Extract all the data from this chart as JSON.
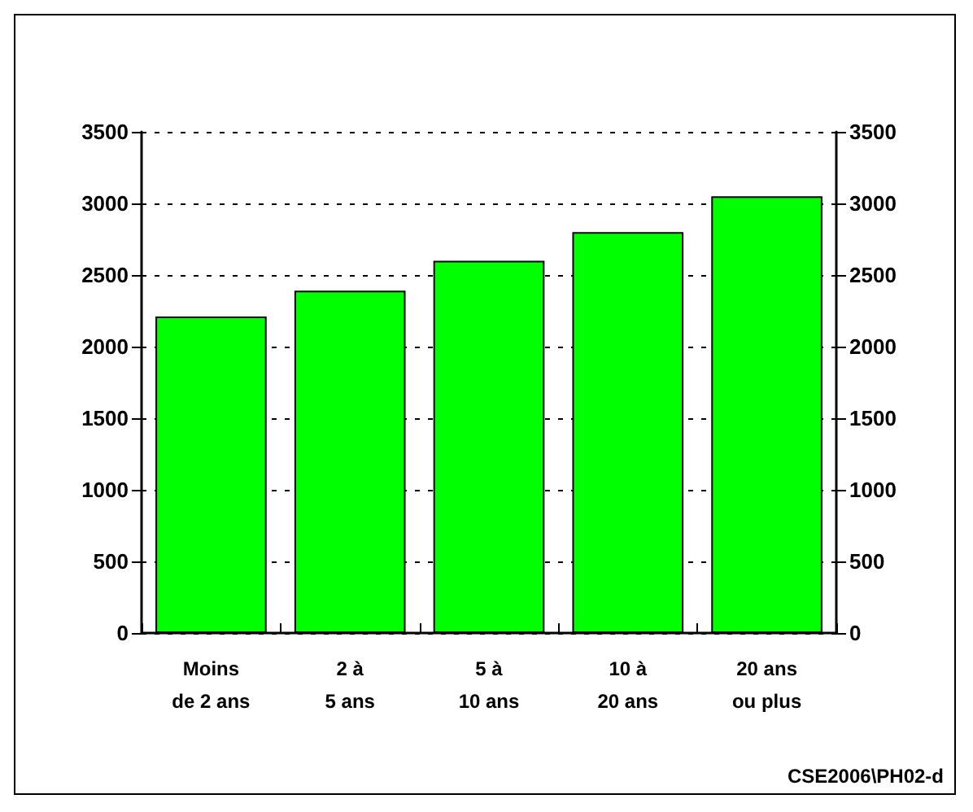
{
  "chart_data": {
    "type": "bar",
    "categories": [
      "Moins\nde 2 ans",
      "2 à\n5 ans",
      "5 à\n10 ans",
      "10 à\n20 ans",
      "20 ans\nou plus"
    ],
    "values": [
      2210,
      2390,
      2600,
      2800,
      3050
    ],
    "color": "#00ff00",
    "ylim": [
      0,
      3500
    ],
    "yticks": [
      0,
      500,
      1000,
      1500,
      2000,
      2500,
      3000,
      3500
    ],
    "y2lim": [
      0,
      3500
    ],
    "y2ticks": [
      0,
      500,
      1000,
      1500,
      2000,
      2500,
      3000,
      3500
    ],
    "grid": "y",
    "annotations": [
      "CSE2006\\PH02-d"
    ]
  }
}
